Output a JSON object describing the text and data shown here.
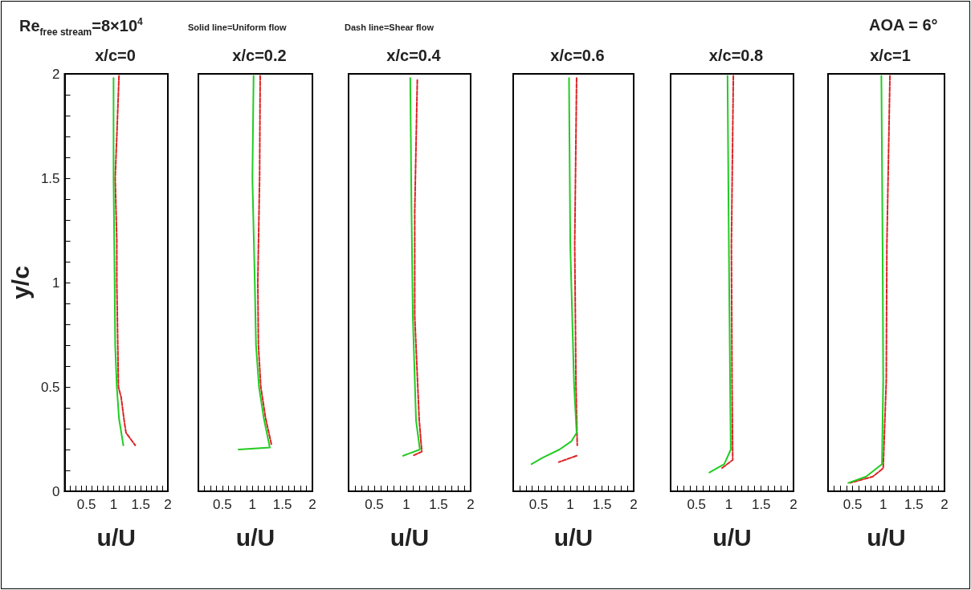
{
  "chart_data": [
    {
      "type": "line",
      "title": "x/c=0",
      "xlabel": "u/U",
      "ylabel": "y/c",
      "annotations": [
        "Re$_{free stream}$=8×10$^{4}$",
        "Solid line=Uniform flow",
        "Dash line=Shear flow"
      ],
      "marker": "none",
      "xlim": [
        0.1,
        2
      ],
      "ylim": [
        0,
        2
      ],
      "xticks": [
        {
          "value": 0.2,
          "label": null
        },
        {
          "value": 0.3,
          "label": null
        },
        {
          "value": 0.4,
          "label": null
        },
        0.5,
        {
          "value": 0.6,
          "label": null
        },
        {
          "value": 0.7,
          "label": null
        },
        {
          "value": 0.8,
          "label": null
        },
        {
          "value": 0.9,
          "label": null
        },
        1,
        {
          "value": 1.1,
          "label": null
        },
        {
          "value": 1.2,
          "label": null
        },
        {
          "value": 1.3,
          "label": null
        },
        {
          "value": 1.4,
          "label": null
        },
        1.5,
        {
          "value": 1.6,
          "label": null
        },
        {
          "value": 1.7,
          "label": null
        },
        {
          "value": 1.8,
          "label": null
        },
        {
          "value": 1.9,
          "label": null
        },
        2
      ],
      "yticks": [
        0,
        {
          "value": 0.1,
          "label": null
        },
        {
          "value": 0.2,
          "label": null
        },
        {
          "value": 0.3,
          "label": null
        },
        {
          "value": 0.4,
          "label": null
        },
        0.5,
        {
          "value": 0.6,
          "label": null
        },
        {
          "value": 0.7,
          "label": null
        },
        {
          "value": 0.8,
          "label": null
        },
        {
          "value": 0.9,
          "label": null
        },
        1,
        {
          "value": 1.1,
          "label": null
        },
        {
          "value": 1.2,
          "label": null
        },
        {
          "value": 1.3,
          "label": null
        },
        {
          "value": 1.4,
          "label": null
        },
        1.5,
        {
          "value": 1.6,
          "label": null
        },
        {
          "value": 1.7,
          "label": null
        },
        {
          "value": 1.8,
          "label": null
        },
        {
          "value": 1.9,
          "label": null
        },
        2
      ],
      "series": [
        {
          "color": "#dd2222",
          "line_style": "dashed",
          "x": [
            1.1,
            1.06,
            1.03,
            1.06,
            1.06,
            1.09,
            1.14,
            1.2,
            1.23,
            1.4
          ],
          "values": [
            1.99,
            1.7,
            1.5,
            1.2,
            1.0,
            0.5,
            0.45,
            0.33,
            0.28,
            0.22
          ]
        },
        {
          "color": "#22cc22",
          "line_style": "solid",
          "x": [
            1.0,
            1.0,
            1.02,
            1.03,
            1.06,
            1.1,
            1.18
          ],
          "values": [
            1.98,
            1.5,
            1.0,
            0.7,
            0.5,
            0.35,
            0.22
          ]
        }
      ]
    },
    {
      "type": "line",
      "title": "x/c=0.2",
      "xlabel": "u/U",
      "tick_labels": "x",
      "marker": "none",
      "xlim": [
        0.1,
        2
      ],
      "ylim": [
        0,
        2
      ],
      "xticks": [
        {
          "value": 0.2,
          "label": null
        },
        {
          "value": 0.3,
          "label": null
        },
        {
          "value": 0.4,
          "label": null
        },
        0.5,
        {
          "value": 0.6,
          "label": null
        },
        {
          "value": 0.7,
          "label": null
        },
        {
          "value": 0.8,
          "label": null
        },
        {
          "value": 0.9,
          "label": null
        },
        1,
        {
          "value": 1.1,
          "label": null
        },
        {
          "value": 1.2,
          "label": null
        },
        {
          "value": 1.3,
          "label": null
        },
        {
          "value": 1.4,
          "label": null
        },
        1.5,
        {
          "value": 1.6,
          "label": null
        },
        {
          "value": 1.7,
          "label": null
        },
        {
          "value": 1.8,
          "label": null
        },
        {
          "value": 1.9,
          "label": null
        },
        2
      ],
      "series": [
        {
          "color": "#dd2222",
          "line_style": "dashed",
          "x": [
            1.13,
            1.12,
            1.09,
            1.1,
            1.14,
            1.22,
            1.32
          ],
          "values": [
            1.99,
            1.5,
            1.0,
            0.7,
            0.5,
            0.35,
            0.22
          ]
        },
        {
          "color": "#22cc22",
          "line_style": "solid",
          "x": [
            1.02,
            1.0,
            1.04,
            1.06,
            1.11,
            1.19,
            1.29,
            0.77
          ],
          "values": [
            1.99,
            1.5,
            1.0,
            0.7,
            0.5,
            0.35,
            0.21,
            0.2
          ]
        }
      ]
    },
    {
      "type": "line",
      "title": "x/c=0.4",
      "xlabel": "u/U",
      "tick_labels": "x",
      "marker": "none",
      "xlim": [
        0.1,
        2
      ],
      "ylim": [
        0,
        2
      ],
      "xticks": [
        {
          "value": 0.2,
          "label": null
        },
        {
          "value": 0.3,
          "label": null
        },
        {
          "value": 0.4,
          "label": null
        },
        0.5,
        {
          "value": 0.6,
          "label": null
        },
        {
          "value": 0.7,
          "label": null
        },
        {
          "value": 0.8,
          "label": null
        },
        {
          "value": 0.9,
          "label": null
        },
        1,
        {
          "value": 1.1,
          "label": null
        },
        {
          "value": 1.2,
          "label": null
        },
        {
          "value": 1.3,
          "label": null
        },
        {
          "value": 1.4,
          "label": null
        },
        1.5,
        {
          "value": 1.6,
          "label": null
        },
        {
          "value": 1.7,
          "label": null
        },
        {
          "value": 1.8,
          "label": null
        },
        {
          "value": 1.9,
          "label": null
        },
        2
      ],
      "series": [
        {
          "color": "#dd2222",
          "line_style": "dashed",
          "x": [
            1.17,
            1.13,
            1.13,
            1.2,
            1.24,
            1.1
          ],
          "values": [
            1.97,
            1.34,
            0.84,
            0.34,
            0.19,
            0.17
          ]
        },
        {
          "color": "#22cc22",
          "line_style": "solid",
          "x": [
            1.06,
            1.08,
            1.1,
            1.15,
            1.21,
            0.95
          ],
          "values": [
            1.98,
            1.34,
            0.84,
            0.34,
            0.2,
            0.17
          ]
        }
      ]
    },
    {
      "type": "line",
      "title": "x/c=0.6",
      "xlabel": "u/U",
      "tick_labels": "x",
      "marker": "none",
      "xlim": [
        0.1,
        2
      ],
      "ylim": [
        0,
        2
      ],
      "xticks": [
        {
          "value": 0.2,
          "label": null
        },
        {
          "value": 0.3,
          "label": null
        },
        {
          "value": 0.4,
          "label": null
        },
        0.5,
        {
          "value": 0.6,
          "label": null
        },
        {
          "value": 0.7,
          "label": null
        },
        {
          "value": 0.8,
          "label": null
        },
        {
          "value": 0.9,
          "label": null
        },
        1,
        {
          "value": 1.1,
          "label": null
        },
        {
          "value": 1.2,
          "label": null
        },
        {
          "value": 1.3,
          "label": null
        },
        {
          "value": 1.4,
          "label": null
        },
        1.5,
        {
          "value": 1.6,
          "label": null
        },
        {
          "value": 1.7,
          "label": null
        },
        {
          "value": 1.8,
          "label": null
        },
        {
          "value": 1.9,
          "label": null
        },
        2
      ],
      "series": [
        {
          "color": "#dd2222",
          "line_style": "dashed",
          "x": [
            1.1,
            1.07,
            1.09,
            1.11,
            null,
            1.1,
            0.82
          ],
          "values": [
            1.98,
            1.18,
            0.51,
            0.22,
            null,
            0.17,
            0.14
          ]
        },
        {
          "color": "#22cc22",
          "line_style": "solid",
          "x": [
            0.98,
            1.0,
            1.06,
            1.1,
            1.02,
            0.83,
            0.56,
            0.39
          ],
          "values": [
            1.98,
            1.18,
            0.51,
            0.28,
            0.24,
            0.2,
            0.16,
            0.13
          ]
        }
      ]
    },
    {
      "type": "line",
      "title": "x/c=0.8",
      "xlabel": "u/U",
      "tick_labels": "x",
      "marker": "none",
      "xlim": [
        0.1,
        2
      ],
      "ylim": [
        0,
        2
      ],
      "xticks": [
        {
          "value": 0.2,
          "label": null
        },
        {
          "value": 0.3,
          "label": null
        },
        {
          "value": 0.4,
          "label": null
        },
        0.5,
        {
          "value": 0.6,
          "label": null
        },
        {
          "value": 0.7,
          "label": null
        },
        {
          "value": 0.8,
          "label": null
        },
        {
          "value": 0.9,
          "label": null
        },
        1,
        {
          "value": 1.1,
          "label": null
        },
        {
          "value": 1.2,
          "label": null
        },
        {
          "value": 1.3,
          "label": null
        },
        {
          "value": 1.4,
          "label": null
        },
        1.5,
        {
          "value": 1.6,
          "label": null
        },
        {
          "value": 1.7,
          "label": null
        },
        {
          "value": 1.8,
          "label": null
        },
        {
          "value": 1.9,
          "label": null
        },
        2
      ],
      "series": [
        {
          "color": "#dd2222",
          "line_style": "dashed",
          "x": [
            1.07,
            1.04,
            1.05,
            1.06,
            0.89
          ],
          "values": [
            1.99,
            1.18,
            0.51,
            0.15,
            0.11
          ]
        },
        {
          "color": "#22cc22",
          "line_style": "solid",
          "x": [
            0.98,
            1.0,
            1.02,
            1.03,
            0.93,
            0.7
          ],
          "values": [
            1.99,
            1.18,
            0.51,
            0.2,
            0.13,
            0.09
          ]
        }
      ]
    },
    {
      "type": "line",
      "title": "x/c=1",
      "xlabel": "u/U",
      "tick_labels": "x",
      "annotations": [
        "AOA = 6°"
      ],
      "marker": "none",
      "xlim": [
        0.1,
        2
      ],
      "ylim": [
        0,
        2
      ],
      "xticks": [
        {
          "value": 0.2,
          "label": null
        },
        {
          "value": 0.3,
          "label": null
        },
        {
          "value": 0.4,
          "label": null
        },
        0.5,
        {
          "value": 0.6,
          "label": null
        },
        {
          "value": 0.7,
          "label": null
        },
        {
          "value": 0.8,
          "label": null
        },
        {
          "value": 0.9,
          "label": null
        },
        1,
        {
          "value": 1.1,
          "label": null
        },
        {
          "value": 1.2,
          "label": null
        },
        {
          "value": 1.3,
          "label": null
        },
        {
          "value": 1.4,
          "label": null
        },
        1.5,
        {
          "value": 1.6,
          "label": null
        },
        {
          "value": 1.7,
          "label": null
        },
        {
          "value": 1.8,
          "label": null
        },
        {
          "value": 1.9,
          "label": null
        },
        2
      ],
      "series": [
        {
          "color": "#dd2222",
          "line_style": "dashed",
          "x": [
            1.11,
            1.06,
            1.05,
            1.0,
            0.83,
            0.46
          ],
          "values": [
            1.99,
            1.18,
            0.53,
            0.11,
            0.07,
            0.04
          ]
        },
        {
          "color": "#22cc22",
          "line_style": "solid",
          "x": [
            0.97,
            0.99,
            1.0,
            0.98,
            0.72,
            0.43
          ],
          "values": [
            1.99,
            1.18,
            0.53,
            0.13,
            0.07,
            0.04
          ]
        }
      ]
    }
  ]
}
